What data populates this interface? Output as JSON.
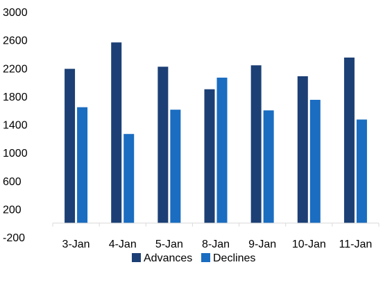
{
  "colors": {
    "advances": "#1c3f75",
    "declines": "#1a6dc0",
    "axis": "#d9d9d9"
  },
  "chart_data": {
    "type": "bar",
    "categories": [
      "3-Jan",
      "4-Jan",
      "5-Jan",
      "8-Jan",
      "9-Jan",
      "10-Jan",
      "11-Jan"
    ],
    "series": [
      {
        "name": "Advances",
        "values": [
          2190,
          2565,
          2220,
          1900,
          2240,
          2085,
          2350
        ]
      },
      {
        "name": "Declines",
        "values": [
          1645,
          1265,
          1610,
          2065,
          1600,
          1750,
          1470
        ]
      }
    ],
    "y_ticks": [
      3000,
      2600,
      2200,
      1800,
      1400,
      1000,
      600,
      200,
      -200
    ],
    "ylim": [
      -200,
      3000
    ],
    "legend": "bottom",
    "grid": false,
    "title": "",
    "xlabel": "",
    "ylabel": ""
  }
}
